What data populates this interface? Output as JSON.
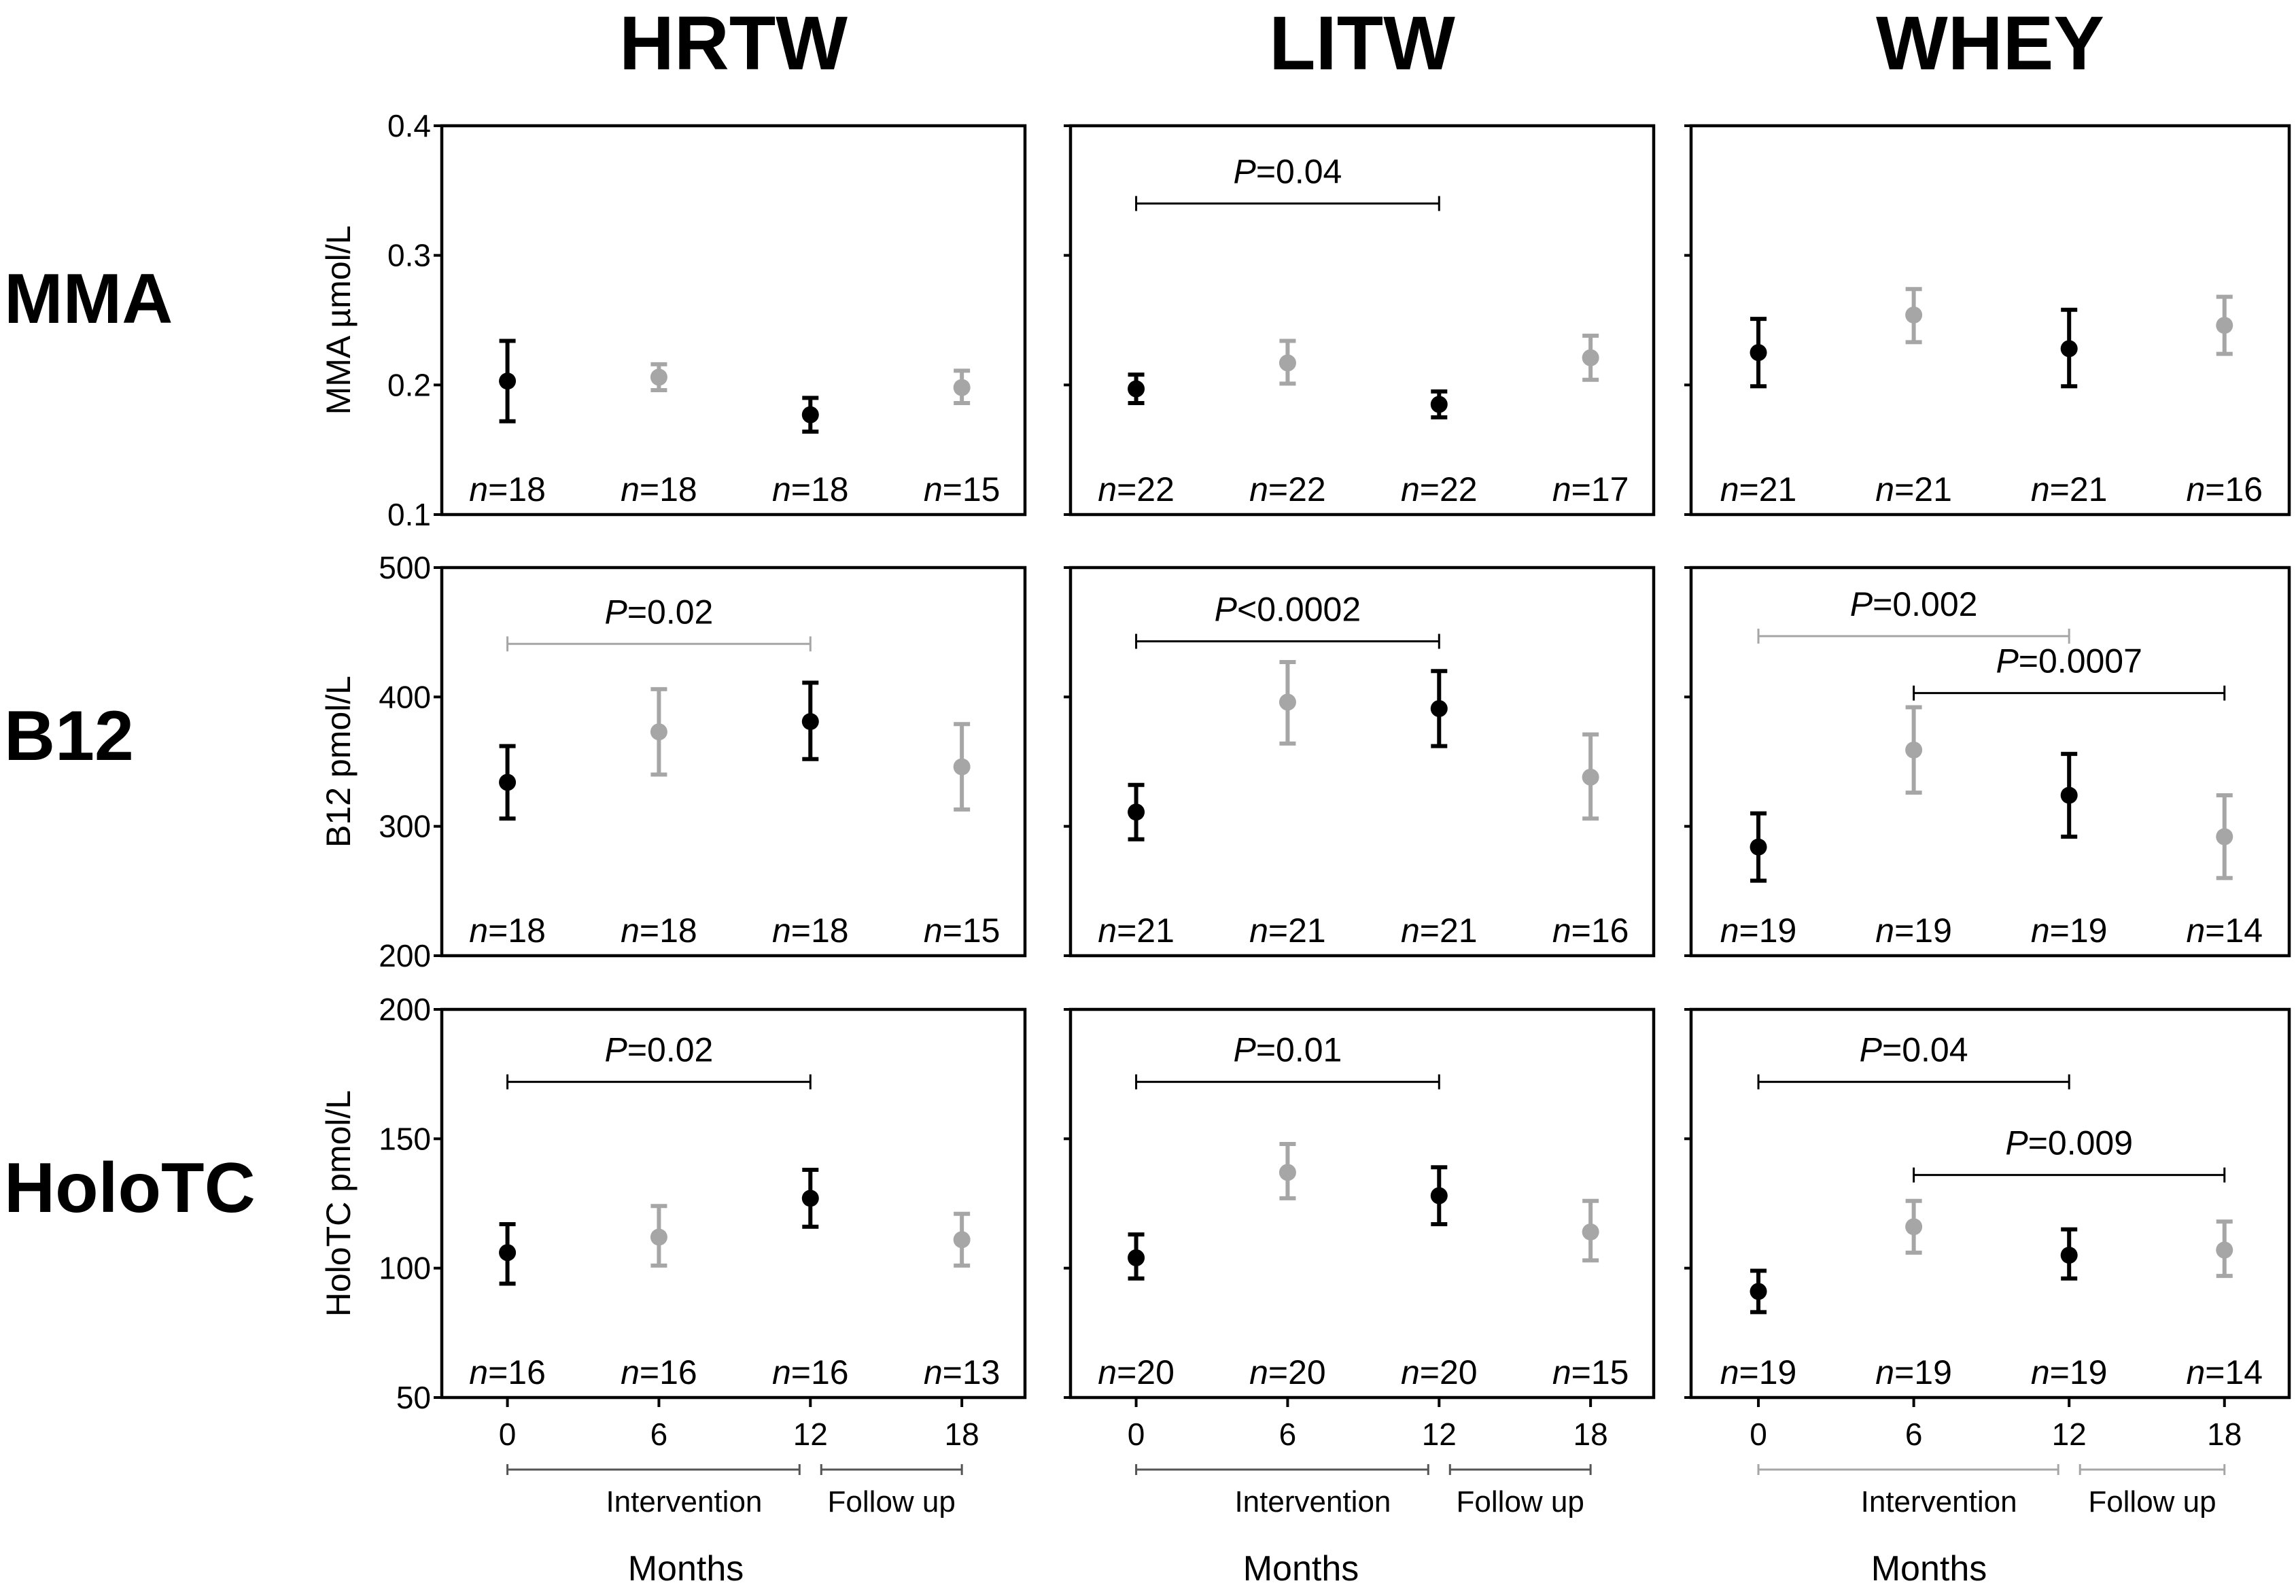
{
  "chart_data": {
    "type": "scatter",
    "style": "mean with error bars, 3x3 panel grid",
    "column_titles": [
      "HRTW",
      "LITW",
      "WHEY"
    ],
    "row_titles": [
      "MMA",
      "B12",
      "HoloTC"
    ],
    "x": {
      "label": "Months",
      "ticks": [
        "0",
        "6",
        "12",
        "18"
      ],
      "values": [
        0,
        6,
        12,
        18
      ],
      "phases": [
        {
          "label": "Intervention",
          "from": 0,
          "to": 12
        },
        {
          "label": "Follow up",
          "from": 12,
          "to": 18
        }
      ]
    },
    "n_prefix": "n",
    "p_prefix": "P",
    "point_colors": {
      "dark": "#000000",
      "light": "#a6a6a6"
    },
    "point_shades": [
      "dark",
      "light",
      "dark",
      "light"
    ],
    "rows": [
      {
        "id": "MMA",
        "ylabel": "MMA µmol/L",
        "ylim": [
          0.1,
          0.4
        ],
        "yticks": [
          "0.1",
          "0.2",
          "0.3",
          "0.4"
        ],
        "ytick_values": [
          0.1,
          0.2,
          0.3,
          0.4
        ]
      },
      {
        "id": "B12",
        "ylabel": "B12 pmol/L",
        "ylim": [
          200,
          500
        ],
        "yticks": [
          "200",
          "300",
          "400",
          "500"
        ],
        "ytick_values": [
          200,
          300,
          400,
          500
        ]
      },
      {
        "id": "HoloTC",
        "ylabel": "HoloTC pmol/L",
        "ylim": [
          50,
          200
        ],
        "yticks": [
          "50",
          "100",
          "150",
          "200"
        ],
        "ytick_values": [
          50,
          100,
          150,
          200
        ]
      }
    ],
    "panels": [
      {
        "row": 0,
        "col": 0,
        "mean": [
          0.203,
          0.206,
          0.177,
          0.198
        ],
        "lo": [
          0.172,
          0.196,
          0.164,
          0.186
        ],
        "hi": [
          0.234,
          0.216,
          0.19,
          0.211
        ],
        "n": [
          "18",
          "18",
          "18",
          "15"
        ],
        "brackets": []
      },
      {
        "row": 0,
        "col": 1,
        "mean": [
          0.197,
          0.217,
          0.185,
          0.221
        ],
        "lo": [
          0.186,
          0.201,
          0.175,
          0.204
        ],
        "hi": [
          0.208,
          0.234,
          0.195,
          0.238
        ],
        "n": [
          "22",
          "22",
          "22",
          "17"
        ],
        "brackets": [
          {
            "from": 0,
            "to": 12,
            "value": 0.34,
            "label": "=0.04",
            "shade": "dark"
          }
        ]
      },
      {
        "row": 0,
        "col": 2,
        "mean": [
          0.225,
          0.254,
          0.228,
          0.246
        ],
        "lo": [
          0.199,
          0.233,
          0.199,
          0.224
        ],
        "hi": [
          0.251,
          0.274,
          0.258,
          0.268
        ],
        "n": [
          "21",
          "21",
          "21",
          "16"
        ],
        "brackets": []
      },
      {
        "row": 1,
        "col": 0,
        "mean": [
          334,
          373,
          381,
          346
        ],
        "lo": [
          306,
          340,
          352,
          313
        ],
        "hi": [
          362,
          406,
          411,
          379
        ],
        "n": [
          "18",
          "18",
          "18",
          "15"
        ],
        "brackets": [
          {
            "from": 0,
            "to": 12,
            "value": 441,
            "label": "=0.02",
            "shade": "light"
          }
        ]
      },
      {
        "row": 1,
        "col": 1,
        "mean": [
          311,
          396,
          391,
          338
        ],
        "lo": [
          290,
          364,
          362,
          306
        ],
        "hi": [
          332,
          427,
          420,
          371
        ],
        "n": [
          "21",
          "21",
          "21",
          "16"
        ],
        "brackets": [
          {
            "from": 0,
            "to": 12,
            "value": 443,
            "label": "<0.0002",
            "shade": "dark"
          }
        ]
      },
      {
        "row": 1,
        "col": 2,
        "mean": [
          284,
          359,
          324,
          292
        ],
        "lo": [
          258,
          326,
          292,
          260
        ],
        "hi": [
          310,
          392,
          356,
          324
        ],
        "n": [
          "19",
          "19",
          "19",
          "14"
        ],
        "brackets": [
          {
            "from": 0,
            "to": 12,
            "value": 447,
            "label": "=0.002",
            "shade": "light"
          },
          {
            "from": 6,
            "to": 18,
            "value": 403,
            "label": "=0.0007",
            "shade": "dark"
          }
        ]
      },
      {
        "row": 2,
        "col": 0,
        "mean": [
          106,
          112,
          127,
          111
        ],
        "lo": [
          94,
          101,
          116,
          101
        ],
        "hi": [
          117,
          124,
          138,
          121
        ],
        "n": [
          "16",
          "16",
          "16",
          "13"
        ],
        "brackets": [
          {
            "from": 0,
            "to": 12,
            "value": 172,
            "label": "=0.02",
            "shade": "dark"
          }
        ]
      },
      {
        "row": 2,
        "col": 1,
        "mean": [
          104,
          137,
          128,
          114
        ],
        "lo": [
          96,
          127,
          117,
          103
        ],
        "hi": [
          113,
          148,
          139,
          126
        ],
        "n": [
          "20",
          "20",
          "20",
          "15"
        ],
        "brackets": [
          {
            "from": 0,
            "to": 12,
            "value": 172,
            "label": "=0.01",
            "shade": "dark"
          }
        ]
      },
      {
        "row": 2,
        "col": 2,
        "mean": [
          91,
          116,
          105,
          107
        ],
        "lo": [
          83,
          106,
          96,
          97
        ],
        "hi": [
          99,
          126,
          115,
          118
        ],
        "n": [
          "19",
          "19",
          "19",
          "14"
        ],
        "brackets": [
          {
            "from": 0,
            "to": 12,
            "value": 172,
            "label": "=0.04",
            "shade": "dark"
          },
          {
            "from": 6,
            "to": 18,
            "value": 136,
            "label": "=0.009",
            "shade": "dark"
          }
        ]
      }
    ]
  }
}
